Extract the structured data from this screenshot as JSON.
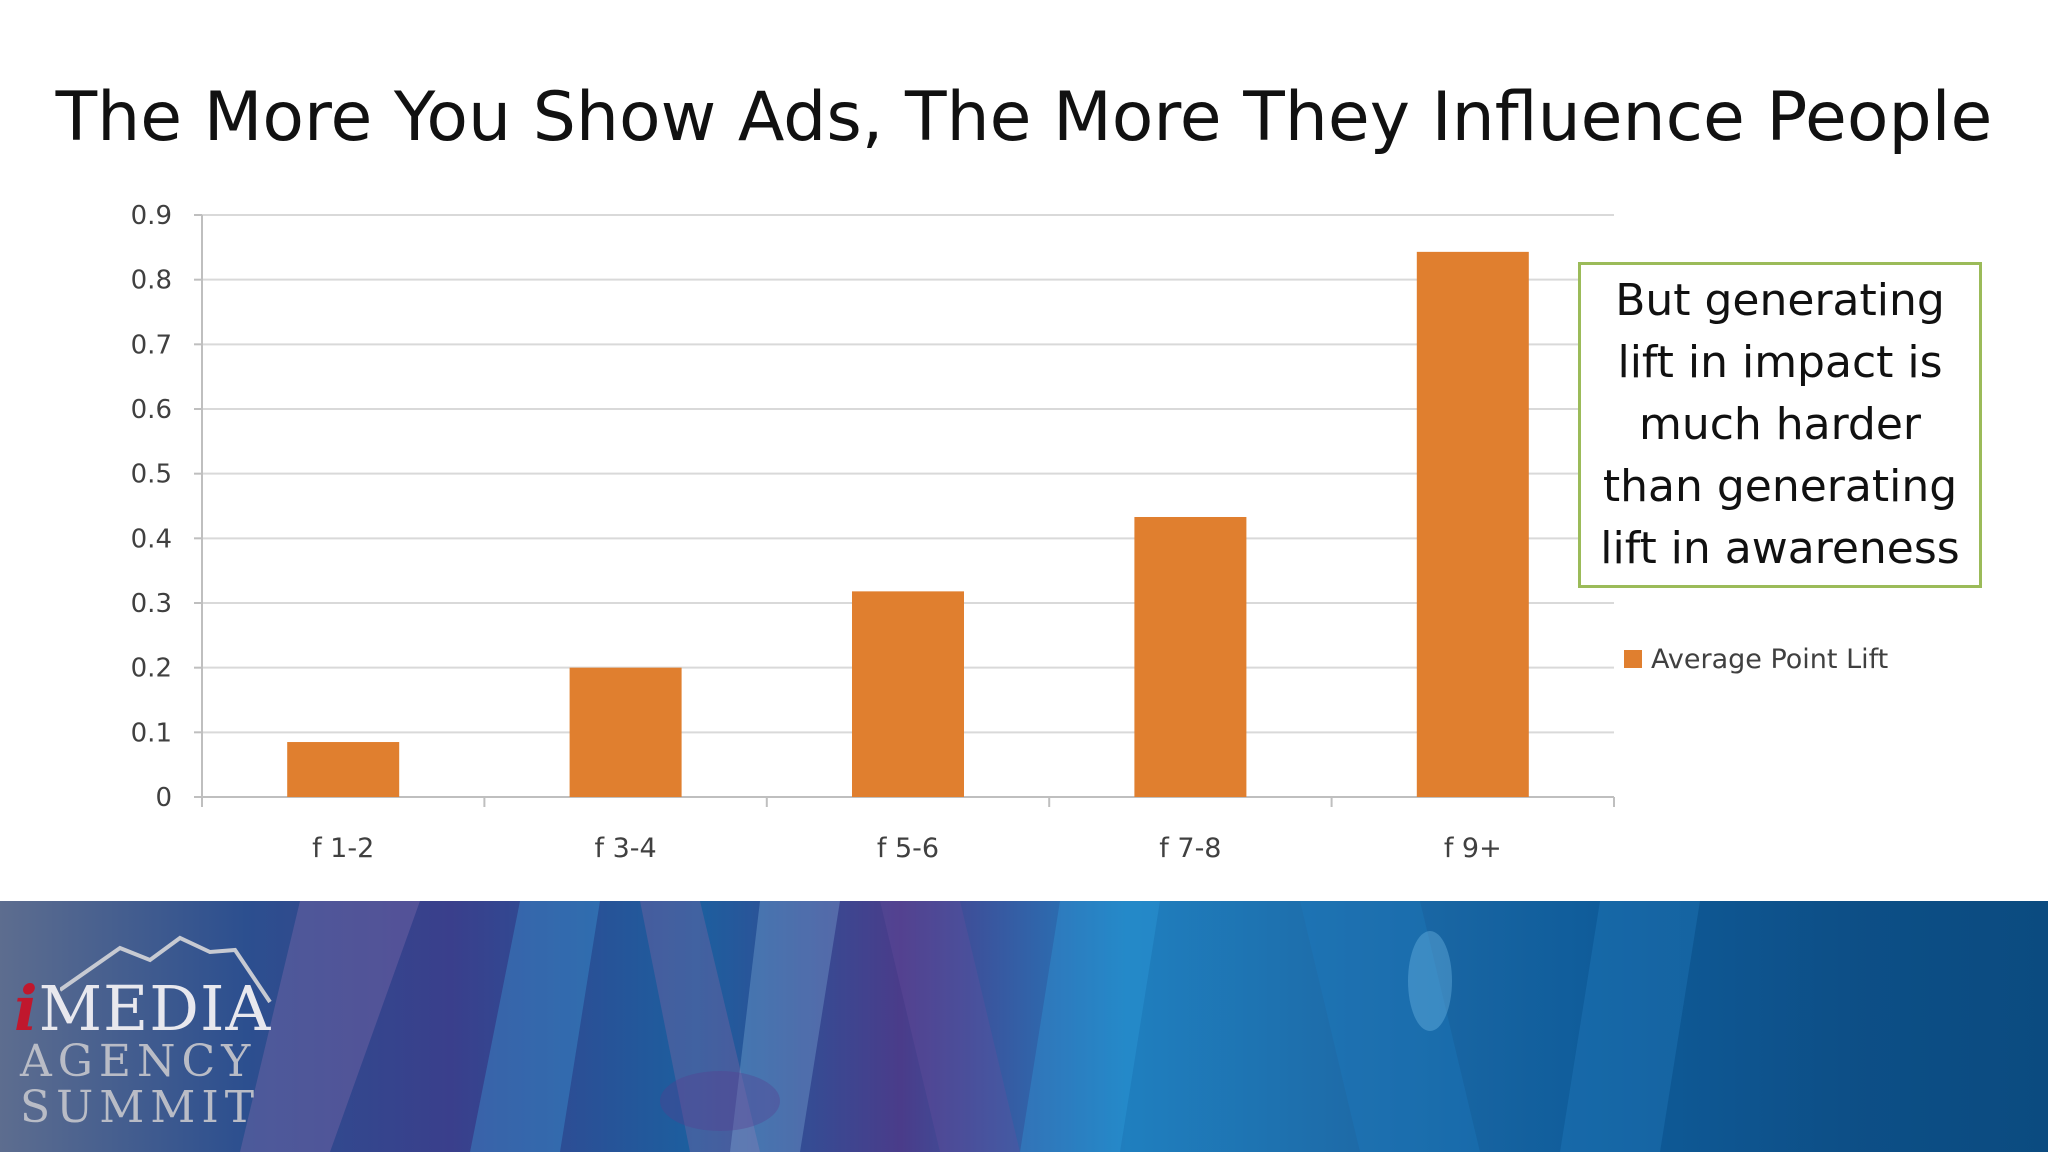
{
  "slide": {
    "title": "The More You Show Ads, The More They Influence People"
  },
  "callout": {
    "text": "But generating lift in impact is much harder than generating lift in awareness"
  },
  "logo": {
    "i": "i",
    "media": "MEDIA",
    "agency": "AGENCY",
    "summit": "SUMMIT"
  },
  "colors": {
    "bar": "#e07f2f",
    "callout_border": "#9bbb59",
    "grid": "#d9d9d9"
  },
  "chart_data": {
    "type": "bar",
    "categories": [
      "f 1-2",
      "f 3-4",
      "f 5-6",
      "f 7-8",
      "f 9+"
    ],
    "series": [
      {
        "name": "Average Point Lift",
        "values": [
          0.085,
          0.2,
          0.318,
          0.433,
          0.843
        ]
      }
    ],
    "title": "",
    "xlabel": "",
    "ylabel": "",
    "ylim": [
      0,
      0.9
    ],
    "yticks": [
      "0",
      "0.1",
      "0.2",
      "0.3",
      "0.4",
      "0.5",
      "0.6",
      "0.7",
      "0.8",
      "0.9"
    ],
    "grid": true,
    "legend_position": "right"
  }
}
